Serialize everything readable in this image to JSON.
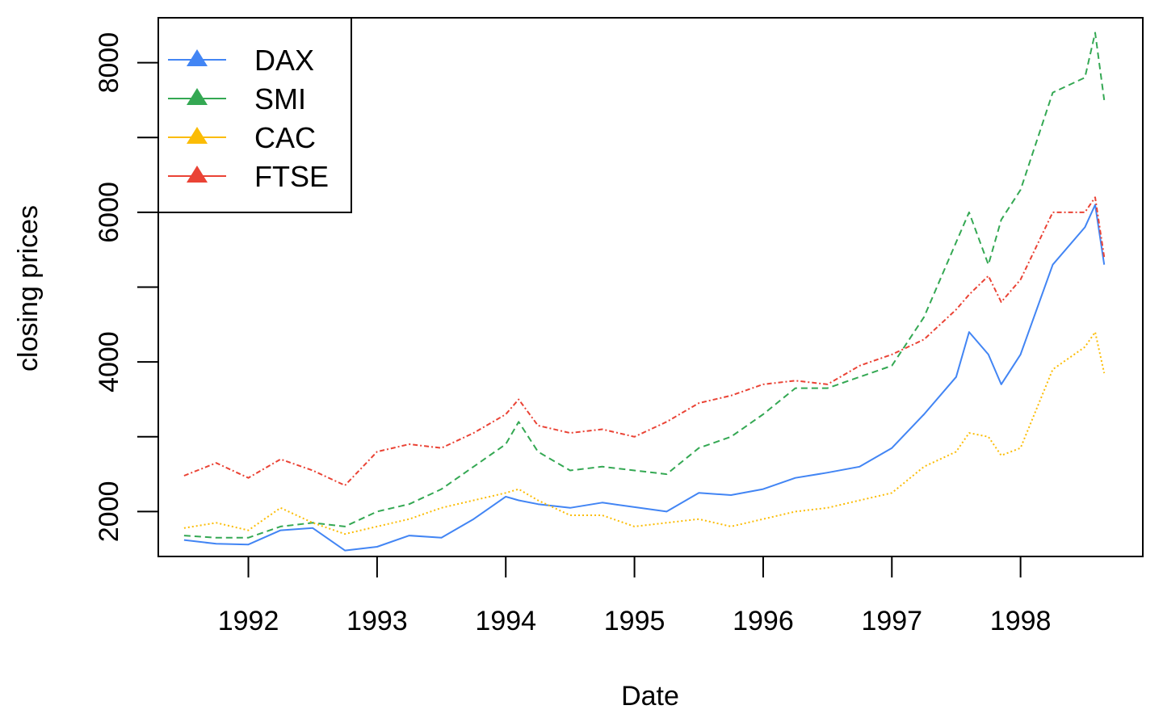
{
  "chart_data": {
    "type": "line",
    "title": "",
    "xlabel": "Date",
    "ylabel": "closing prices",
    "xlim": [
      1991.3,
      1998.95
    ],
    "ylim": [
      1400,
      8600
    ],
    "xticks": [
      1992,
      1993,
      1994,
      1995,
      1996,
      1997,
      1998
    ],
    "xtick_labels": [
      "1992",
      "1993",
      "1994",
      "1995",
      "1996",
      "1997",
      "1998"
    ],
    "yticks": [
      2000,
      3000,
      4000,
      5000,
      6000,
      7000,
      8000
    ],
    "ytick_labels": [
      "2000",
      "",
      "4000",
      "",
      "6000",
      "",
      "8000"
    ],
    "grid": false,
    "legend_position": "top-left",
    "x": [
      1991.5,
      1991.75,
      1992.0,
      1992.25,
      1992.5,
      1992.75,
      1993.0,
      1993.25,
      1993.5,
      1993.75,
      1994.0,
      1994.1,
      1994.25,
      1994.5,
      1994.75,
      1995.0,
      1995.25,
      1995.5,
      1995.75,
      1996.0,
      1996.25,
      1996.5,
      1996.75,
      1997.0,
      1997.25,
      1997.5,
      1997.6,
      1997.75,
      1997.85,
      1998.0,
      1998.25,
      1998.5,
      1998.58,
      1998.65
    ],
    "series": [
      {
        "name": "DAX",
        "color": "#4285F4",
        "dash": "solid",
        "values": [
          1620,
          1570,
          1560,
          1750,
          1780,
          1480,
          1530,
          1680,
          1650,
          1900,
          2200,
          2150,
          2100,
          2050,
          2120,
          2060,
          2000,
          2250,
          2220,
          2300,
          2450,
          2520,
          2600,
          2850,
          3300,
          3800,
          4400,
          4100,
          3700,
          4100,
          5300,
          5800,
          6100,
          5300
        ]
      },
      {
        "name": "SMI",
        "color": "#34A853",
        "dash": "8,5",
        "values": [
          1680,
          1650,
          1650,
          1800,
          1850,
          1800,
          2000,
          2100,
          2300,
          2600,
          2900,
          3200,
          2800,
          2550,
          2600,
          2550,
          2500,
          2850,
          3000,
          3300,
          3650,
          3650,
          3800,
          3950,
          4600,
          5600,
          6000,
          5300,
          5900,
          6300,
          7600,
          7800,
          8400,
          7500
        ]
      },
      {
        "name": "CAC",
        "color": "#FBBC05",
        "dash": "2,3",
        "values": [
          1780,
          1850,
          1750,
          2050,
          1850,
          1700,
          1800,
          1900,
          2050,
          2150,
          2250,
          2300,
          2150,
          1950,
          1950,
          1800,
          1850,
          1900,
          1800,
          1900,
          2000,
          2050,
          2150,
          2250,
          2600,
          2800,
          3050,
          3000,
          2750,
          2850,
          3900,
          4200,
          4400,
          3850
        ]
      },
      {
        "name": "FTSE",
        "color": "#EA4335",
        "dash": "6,3,2,3",
        "values": [
          2480,
          2650,
          2450,
          2700,
          2550,
          2350,
          2800,
          2900,
          2850,
          3050,
          3300,
          3500,
          3150,
          3050,
          3100,
          3000,
          3200,
          3450,
          3550,
          3700,
          3750,
          3700,
          3950,
          4100,
          4300,
          4700,
          4900,
          5150,
          4800,
          5100,
          6000,
          6000,
          6200,
          5400
        ]
      }
    ]
  }
}
